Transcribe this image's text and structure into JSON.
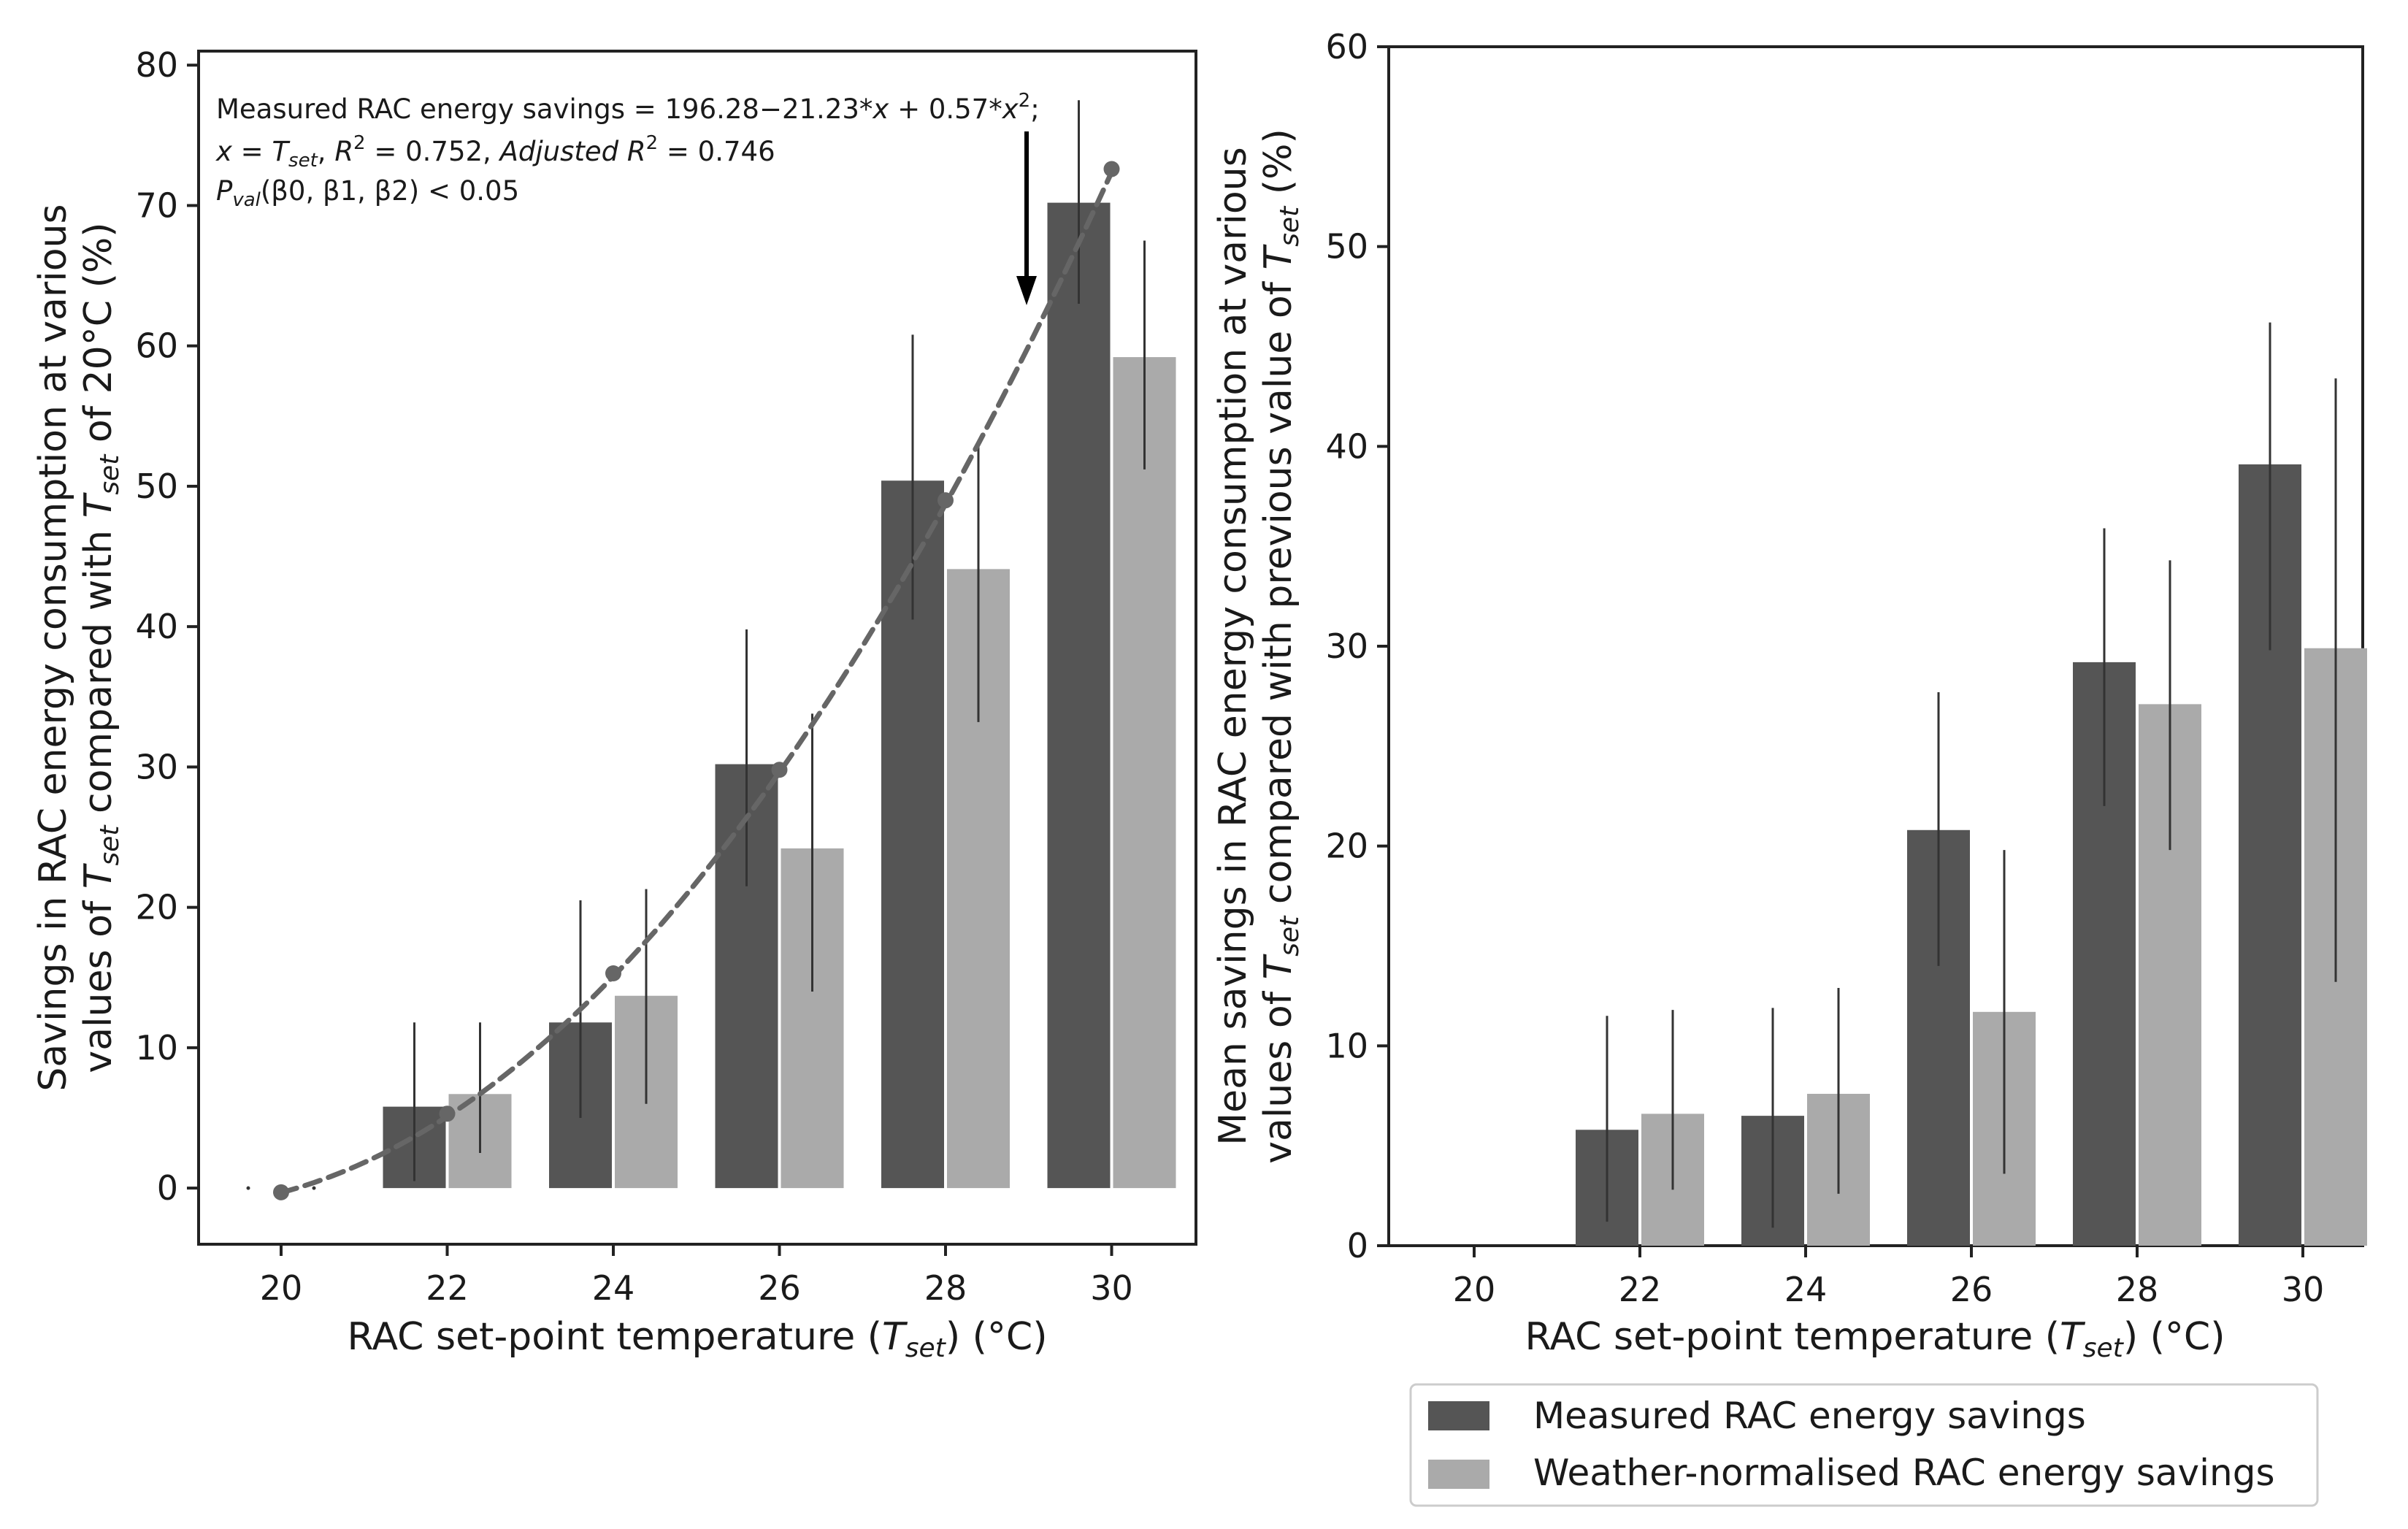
{
  "chart_data": [
    {
      "type": "bar",
      "panel": "left",
      "categories": [
        "20",
        "22",
        "24",
        "26",
        "28",
        "30"
      ],
      "series": [
        {
          "name": "Measured RAC energy savings",
          "color": "#555555",
          "values": [
            null,
            5.8,
            11.8,
            30.2,
            50.4,
            70.2
          ],
          "err_low": [
            null,
            0.5,
            5.0,
            21.5,
            40.5,
            63.0
          ],
          "err_high": [
            null,
            11.8,
            20.5,
            39.8,
            60.8,
            77.5
          ]
        },
        {
          "name": "Weather-normalised RAC energy savings",
          "color": "#aaaaaa",
          "values": [
            null,
            6.7,
            13.7,
            24.2,
            44.1,
            59.2
          ],
          "err_low": [
            null,
            2.5,
            6.0,
            14.0,
            33.2,
            51.2
          ],
          "err_high": [
            null,
            11.8,
            21.3,
            33.8,
            53.2,
            67.5
          ]
        }
      ],
      "fit_curve": {
        "color": "#666666",
        "x": [
          20,
          22,
          24,
          26,
          28,
          30
        ],
        "y": [
          -0.3,
          5.3,
          15.3,
          29.8,
          49.0,
          72.6
        ]
      },
      "ylim": [
        -4,
        81
      ],
      "yticks": [
        "0",
        "10",
        "20",
        "30",
        "40",
        "50",
        "60",
        "70",
        "80"
      ],
      "xlabel": "RAC set-point temperature (T_set) (°C)",
      "ylabel_line1": "Savings in RAC energy consumption at various",
      "ylabel_line2": "values of T_set compared with T_set of 20°C (%)",
      "annotation": [
        "Measured RAC energy savings = 196.28−21.23*x + 0.57*x²;",
        "x = T_set, R² = 0.752, Adjusted R² = 0.746",
        "P_val(β0, β1, β2) < 0.05"
      ]
    },
    {
      "type": "bar",
      "panel": "right",
      "categories": [
        "20",
        "22",
        "24",
        "26",
        "28",
        "30"
      ],
      "series": [
        {
          "name": "Measured RAC energy savings",
          "color": "#555555",
          "values": [
            null,
            5.8,
            6.5,
            20.8,
            29.2,
            39.1
          ],
          "err_low": [
            null,
            1.2,
            0.9,
            14.0,
            22.0,
            29.8
          ],
          "err_high": [
            null,
            11.5,
            11.9,
            27.7,
            35.9,
            46.2
          ]
        },
        {
          "name": "Weather-normalised RAC energy savings",
          "color": "#aaaaaa",
          "values": [
            null,
            6.6,
            7.6,
            11.7,
            27.1,
            29.9
          ],
          "err_low": [
            null,
            2.8,
            2.6,
            3.6,
            19.8,
            13.2
          ],
          "err_high": [
            null,
            11.8,
            12.9,
            19.8,
            34.3,
            43.4
          ]
        }
      ],
      "ylim": [
        0,
        60
      ],
      "yticks": [
        "0",
        "10",
        "20",
        "30",
        "40",
        "50",
        "60"
      ],
      "xlabel": "RAC set-point temperature (T_set) (°C)",
      "ylabel_line1": "Mean savings in RAC energy consumption at various",
      "ylabel_line2": "values of T_set compared with previous value of T_set (%)",
      "legend": [
        "Measured RAC energy savings",
        "Weather-normalised RAC energy savings"
      ],
      "legend_position": "below"
    }
  ],
  "text": {
    "xlabel_prefix": "RAC set-point temperature (",
    "xlabel_T": "T",
    "xlabel_sub": "set",
    "xlabel_suffix": ") (°C)",
    "left_ylabel_1": "Savings in RAC energy consumption at various",
    "left_ylabel_2a": "values of ",
    "left_ylabel_2b": " compared with ",
    "left_ylabel_2c": " of 20°C (%)",
    "right_ylabel_1": "Mean savings in RAC energy consumption at various",
    "right_ylabel_2a": "values of ",
    "right_ylabel_2b": " compared with previous value of ",
    "right_ylabel_2c": " (%)",
    "annot_line1a": "Measured RAC energy savings = 196.28−21.23*",
    "annot_line1b": "x",
    "annot_line1c": " + 0.57*",
    "annot_line1d": "x",
    "annot_line1e": "2",
    "annot_line1f": ";",
    "annot_line2a": "x",
    "annot_line2b": " = ",
    "annot_line2c": "T",
    "annot_line2d": "set",
    "annot_line2e": ", ",
    "annot_line2f": "R",
    "annot_line2g": "2",
    "annot_line2h": " = 0.752, ",
    "annot_line2i": "Adjusted R",
    "annot_line2j": "2",
    "annot_line2k": " = 0.746",
    "annot_line3a": "P",
    "annot_line3b": "val",
    "annot_line3c": "(β0, β1, β2) < 0.05",
    "legend_measured": "Measured RAC energy savings",
    "legend_weather": "Weather-normalised RAC energy savings"
  }
}
